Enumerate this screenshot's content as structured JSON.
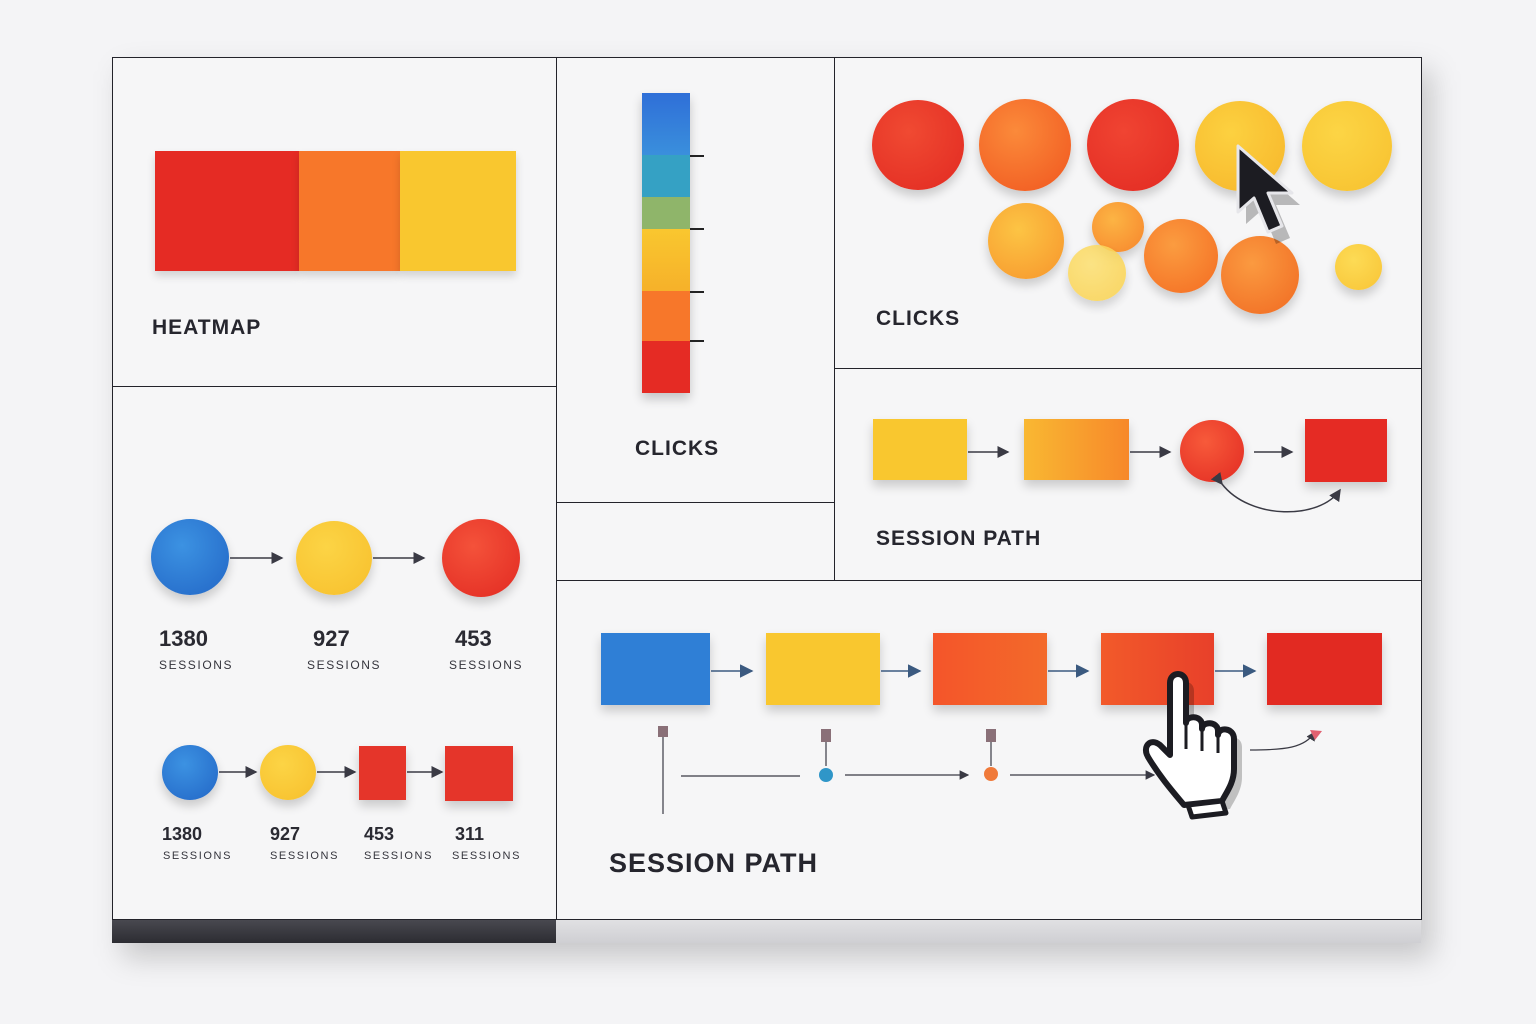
{
  "panels": {
    "heatmap": {
      "label": "HEATMAP"
    },
    "clicks_bar": {
      "label": "CLICKS"
    },
    "clicks_bubbles": {
      "label": "CLICKS"
    },
    "session_path_small": {
      "label": "SESSION PATH"
    },
    "session_path_large": {
      "label": "SESSION PATH"
    }
  },
  "funnel_top": [
    {
      "value": "1380",
      "unit": "SESSIONS"
    },
    {
      "value": "927",
      "unit": "SESSIONS"
    },
    {
      "value": "453",
      "unit": "SESSIONS"
    }
  ],
  "funnel_bottom": [
    {
      "value": "1380",
      "unit": "SESSIONS"
    },
    {
      "value": "927",
      "unit": "SESSIONS"
    },
    {
      "value": "453",
      "unit": "SESSIONS"
    },
    {
      "value": "311",
      "unit": "SESSIONS"
    }
  ],
  "colors": {
    "red": "#e52b24",
    "orange": "#f7772a",
    "yellow": "#f9c72f",
    "blue": "#2f7fd6",
    "teal": "#35a1c4",
    "green": "#8fb56a"
  },
  "icons": [
    "arrow-cursor-icon",
    "hand-pointer-icon"
  ]
}
